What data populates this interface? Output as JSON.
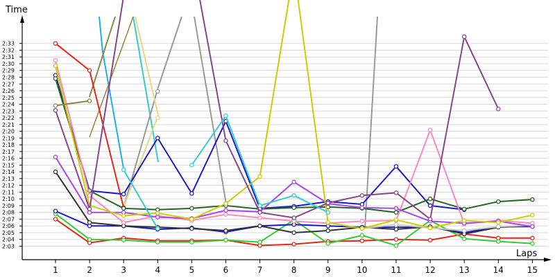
{
  "chart_data": {
    "type": "line",
    "ylabel": "Time",
    "xlabel": "Laps",
    "x": [
      1,
      2,
      3,
      4,
      5,
      6,
      7,
      8,
      9,
      10,
      11,
      12,
      13,
      14,
      15
    ],
    "x_tick_labels": [
      "1",
      "2",
      "3",
      "4",
      "5",
      "6",
      "7",
      "8",
      "9",
      "10",
      "11",
      "12",
      "13",
      "14",
      "15"
    ],
    "y_unit": "seconds",
    "y_tick_labels": [
      "2:03",
      "2:04",
      "2:05",
      "2:06",
      "2:07",
      "2:08",
      "2:09",
      "2:10",
      "2:11",
      "2:12",
      "2:13",
      "2:14",
      "2:15",
      "2:16",
      "2:17",
      "2:18",
      "2:19",
      "2:20",
      "2:21",
      "2:22",
      "2:23",
      "2:24",
      "2:25",
      "2:26",
      "2:27",
      "2:28",
      "2:29",
      "2:30",
      "2:31",
      "2:32",
      "2:33"
    ],
    "y_tick_values": [
      123,
      124,
      125,
      126,
      127,
      128,
      129,
      130,
      131,
      132,
      133,
      134,
      135,
      136,
      137,
      138,
      139,
      140,
      141,
      142,
      143,
      144,
      145,
      146,
      147,
      148,
      149,
      150,
      151,
      152,
      153
    ],
    "ylim": [
      120.3,
      156.5
    ],
    "grid": "horizontal",
    "legend": "none",
    "series": [
      {
        "color": "#e6241a",
        "values": [
          153.0,
          149.0,
          128.7,
          null,
          null,
          null,
          null,
          null,
          null,
          null,
          null,
          null,
          null,
          null,
          null
        ]
      },
      {
        "color": "#e6241a",
        "values": [
          127.0,
          123.5,
          124.2,
          123.8,
          123.8,
          123.9,
          123.1,
          123.3,
          123.7,
          123.8,
          124.0,
          123.9,
          124.8,
          124.2,
          124.2
        ]
      },
      {
        "color": "#33cc33",
        "values": [
          127.8,
          124.0,
          123.9,
          123.6,
          123.6,
          123.9,
          123.6,
          null,
          null,
          null,
          null,
          null,
          null,
          null,
          null
        ]
      },
      {
        "color": "#33cc33",
        "values": [
          null,
          null,
          null,
          null,
          null,
          null,
          123.6,
          126.9,
          123.4,
          124.6,
          123.1,
          126.8,
          124.1,
          123.7,
          123.4
        ]
      },
      {
        "color": "#1a1acc",
        "values": [
          128.2,
          126.0,
          126.0,
          125.5,
          125.7,
          125.1,
          126.0,
          126.2,
          126.0,
          125.8,
          125.8,
          125.8,
          125.0,
          125.9,
          125.9
        ]
      },
      {
        "color": "#1a1acc",
        "values": [
          148.3,
          131.2,
          130.7,
          139.0,
          130.8,
          141.5,
          128.6,
          128.9,
          129.6,
          129.2,
          134.8,
          129.0,
          128.4,
          null,
          null
        ]
      },
      {
        "color": "#333333",
        "values": [
          134.0,
          126.5,
          126.0,
          125.8,
          125.6,
          125.3,
          126.0,
          125.0,
          125.3,
          125.8,
          125.5,
          125.9,
          124.8,
          125.8,
          126.0
        ]
      },
      {
        "color": "#226622",
        "values": [
          147.8,
          131.2,
          128.6,
          128.4,
          128.6,
          129.0,
          128.5,
          128.7,
          128.8,
          128.6,
          128.0,
          130.0,
          128.5,
          129.6,
          129.9
        ]
      },
      {
        "color": "#c8c8c8",
        "values": [
          null,
          null,
          null,
          null,
          null,
          null,
          null,
          null,
          null,
          125.6,
          126.2,
          125.7,
          125.3,
          125.9,
          126.1
        ]
      },
      {
        "color": "#ff88bb",
        "values": [
          150.5,
          130.5,
          126.5,
          127.5,
          126.8,
          127.7,
          127.2,
          126.7,
          126.4,
          126.7,
          126.8,
          140.2,
          126.3,
          126.8,
          126.4
        ]
      },
      {
        "color": "#aa44ee",
        "values": [
          136.2,
          128.0,
          128.0,
          127.3,
          127.1,
          128.3,
          128.1,
          132.5,
          129.3,
          128.7,
          128.6,
          126.7,
          126.4,
          126.7,
          125.9
        ]
      },
      {
        "color": "#cccc00",
        "values": [
          149.7,
          129.0,
          127.5,
          127.9,
          127.0,
          129.3,
          133.3,
          164.0,
          126.5,
          125.6,
          126.9,
          125.7,
          126.8,
          126.5,
          127.6
        ]
      },
      {
        "color": "#884488",
        "values": [
          143.1,
          128.5,
          160.0,
          null,
          null,
          null,
          null,
          null,
          null,
          null,
          null,
          null,
          null,
          null,
          null
        ]
      },
      {
        "color": "#884488",
        "values": [
          null,
          null,
          null,
          null,
          166.0,
          138.6,
          128.0,
          127.2,
          129.4,
          130.5,
          130.9,
          127.0,
          154.0,
          143.3,
          null
        ]
      },
      {
        "color": "#33cccc",
        "values": [
          null,
          null,
          null,
          null,
          135.0,
          142.3,
          129.0,
          130.5,
          128.0,
          null,
          null,
          null,
          null,
          null,
          null
        ]
      },
      {
        "color": "#33cccc",
        "values": [
          null,
          null,
          134.3,
          125.6,
          null,
          null,
          null,
          null,
          null,
          null,
          null,
          null,
          null,
          null,
          null
        ]
      },
      {
        "color": "#888844",
        "values": [
          143.8,
          144.5,
          null,
          null,
          null,
          null,
          null,
          null,
          null,
          null,
          null,
          null,
          null,
          null,
          null
        ]
      },
      {
        "color": "#999999",
        "values": [
          null,
          null,
          null,
          145.9,
          null,
          null,
          null,
          null,
          null,
          null,
          null,
          null,
          null,
          null,
          null
        ]
      },
      {
        "color": "#dddd88",
        "values": [
          null,
          null,
          null,
          142.0,
          null,
          null,
          null,
          null,
          null,
          null,
          null,
          null,
          null,
          null,
          null
        ]
      }
    ]
  }
}
